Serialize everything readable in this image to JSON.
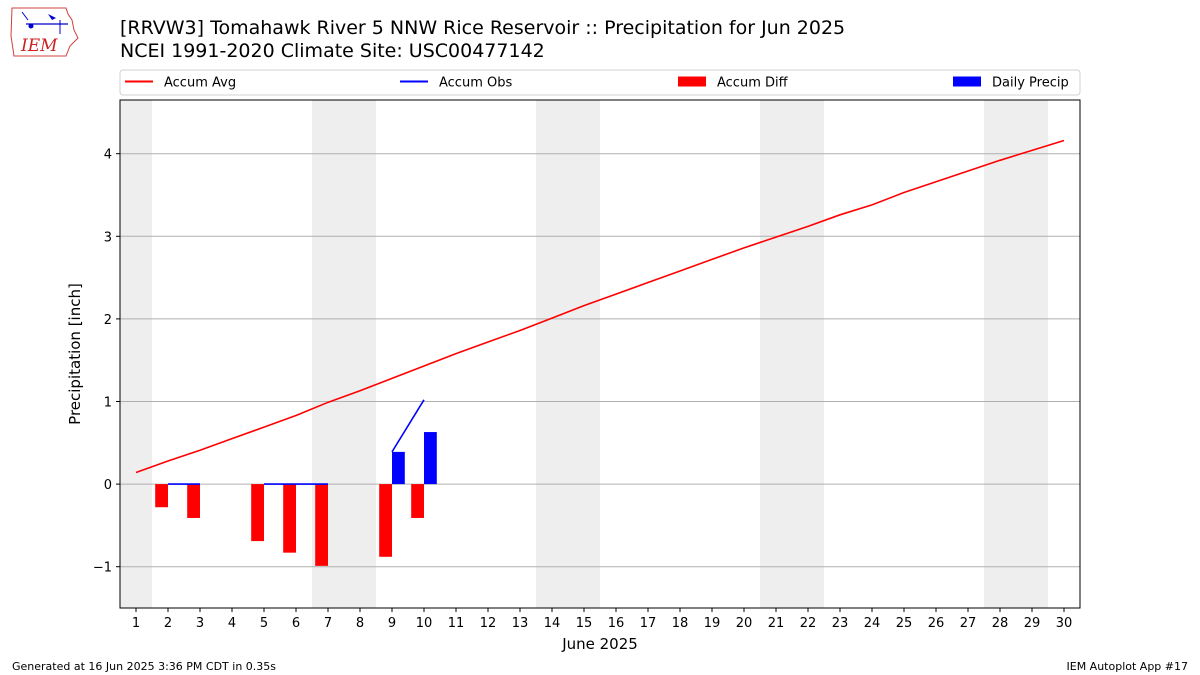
{
  "header": {
    "title_line1": "[RRVW3] Tomahawk River 5 NNW Rice Reservoir :: Precipitation for Jun 2025",
    "title_line2": "NCEI 1991-2020 Climate Site: USC00477142",
    "logo_text": "IEM"
  },
  "footer": {
    "generated": "Generated at 16 Jun 2025 3:36 PM CDT in 0.35s",
    "app": "IEM Autoplot App #17"
  },
  "colors": {
    "accum_avg": "#ff0000",
    "accum_obs": "#0000ff",
    "accum_diff": "#ff0000",
    "daily_precip": "#0000ff",
    "weekend_shade": "#eeeeee",
    "grid": "#b0b0b0"
  },
  "chart_data": {
    "type": "bar",
    "xlabel": "June 2025",
    "ylabel": "Precipitation [inch]",
    "xlim": [
      0.5,
      30.5
    ],
    "ylim": [
      -1.5,
      4.65
    ],
    "yticks": [
      -1,
      0,
      1,
      2,
      3,
      4
    ],
    "ytick_labels": [
      "−1",
      "0",
      "1",
      "2",
      "3",
      "4"
    ],
    "xticks": [
      1,
      2,
      3,
      4,
      5,
      6,
      7,
      8,
      9,
      10,
      11,
      12,
      13,
      14,
      15,
      16,
      17,
      18,
      19,
      20,
      21,
      22,
      23,
      24,
      25,
      26,
      27,
      28,
      29,
      30
    ],
    "ygrid": true,
    "legend_placement": "top",
    "shaded_days": [
      [
        1,
        1
      ],
      [
        7,
        8
      ],
      [
        14,
        15
      ],
      [
        21,
        22
      ],
      [
        28,
        29
      ]
    ],
    "series": [
      {
        "name": "Accum Avg",
        "kind": "line",
        "x": [
          1,
          2,
          3,
          4,
          5,
          6,
          7,
          8,
          9,
          10,
          11,
          12,
          13,
          14,
          15,
          16,
          17,
          18,
          19,
          20,
          21,
          22,
          23,
          24,
          25,
          26,
          27,
          28,
          29,
          30
        ],
        "values": [
          0.14,
          0.28,
          0.41,
          0.55,
          0.69,
          0.83,
          0.99,
          1.13,
          1.28,
          1.43,
          1.58,
          1.72,
          1.86,
          2.01,
          2.16,
          2.3,
          2.44,
          2.58,
          2.72,
          2.86,
          2.99,
          3.12,
          3.26,
          3.38,
          3.53,
          3.66,
          3.79,
          3.92,
          4.04,
          4.16
        ]
      },
      {
        "name": "Accum Obs",
        "kind": "line",
        "x": [
          2,
          3,
          4,
          5,
          6,
          7,
          8,
          9,
          10
        ],
        "values": [
          0.0,
          0.0,
          null,
          0.0,
          0.0,
          0.0,
          null,
          0.39,
          1.02
        ]
      },
      {
        "name": "Accum Diff",
        "kind": "bar",
        "offset": -0.2,
        "x": [
          2,
          3,
          5,
          6,
          7,
          9,
          10
        ],
        "values": [
          -0.28,
          -0.41,
          -0.69,
          -0.83,
          -0.99,
          -0.88,
          -0.41
        ]
      },
      {
        "name": "Daily Precip",
        "kind": "bar",
        "offset": 0.2,
        "x": [
          9,
          10
        ],
        "values": [
          0.39,
          0.63
        ]
      }
    ]
  }
}
